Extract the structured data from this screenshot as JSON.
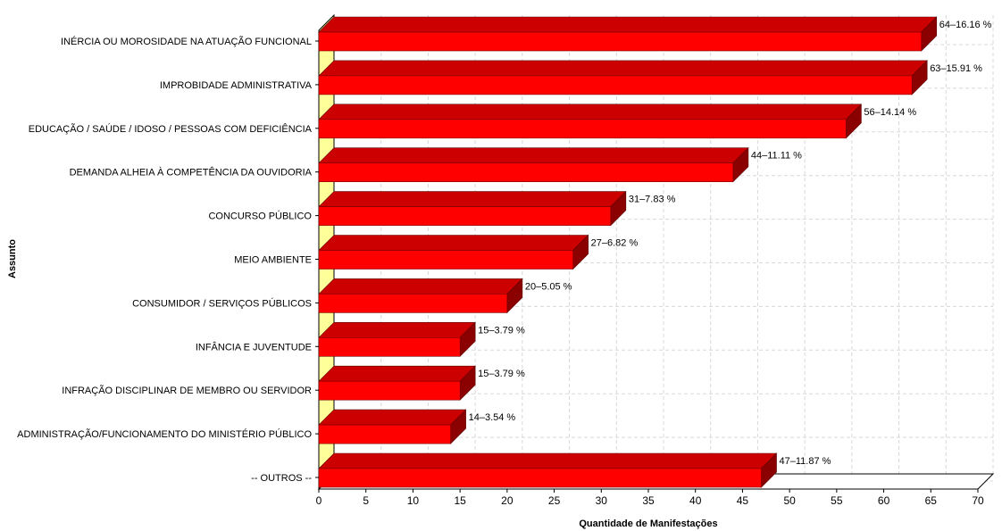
{
  "chart_data": {
    "type": "bar",
    "orientation": "horizontal",
    "three_d": true,
    "grid": true,
    "xlabel": "Quantidade de Manifestações",
    "ylabel": "Assunto",
    "xlim": [
      0,
      70
    ],
    "x_ticks": [
      "0",
      "5",
      "10",
      "15",
      "20",
      "25",
      "30",
      "35",
      "40",
      "45",
      "50",
      "55",
      "60",
      "65",
      "70"
    ],
    "categories": [
      "INÉRCIA OU MOROSIDADE NA ATUAÇÃO FUNCIONAL",
      "IMPROBIDADE ADMINISTRATIVA",
      "EDUCAÇÃO / SAÚDE / IDOSO / PESSOAS COM DEFICIÊNCIA",
      "DEMANDA ALHEIA À COMPETÊNCIA DA OUVIDORIA",
      "CONCURSO PÚBLICO",
      "MEIO AMBIENTE",
      "CONSUMIDOR / SERVIÇOS PÚBLICOS",
      "INFÂNCIA E JUVENTUDE",
      "INFRAÇÃO DISCIPLINAR DE MEMBRO OU SERVIDOR",
      "ADMINISTRAÇÃO/FUNCIONAMENTO DO MINISTÉRIO PÚBLICO",
      "-- OUTROS --"
    ],
    "values": [
      64,
      63,
      56,
      44,
      31,
      27,
      20,
      15,
      15,
      14,
      47
    ],
    "data_labels": [
      "64–16.16 %",
      "63–15.91 %",
      "56–14.14 %",
      "44–11.11 %",
      "31–7.83 %",
      "27–6.82 %",
      "20–5.05 %",
      "15–3.79 %",
      "15–3.79 %",
      "14–3.54 %",
      "47–11.87 %"
    ],
    "colors": {
      "bar_front": "#ff0000",
      "bar_top": "#cc0000",
      "bar_side": "#8b0000",
      "wall": "#ffff99",
      "grid": "#d8d8d8"
    }
  }
}
